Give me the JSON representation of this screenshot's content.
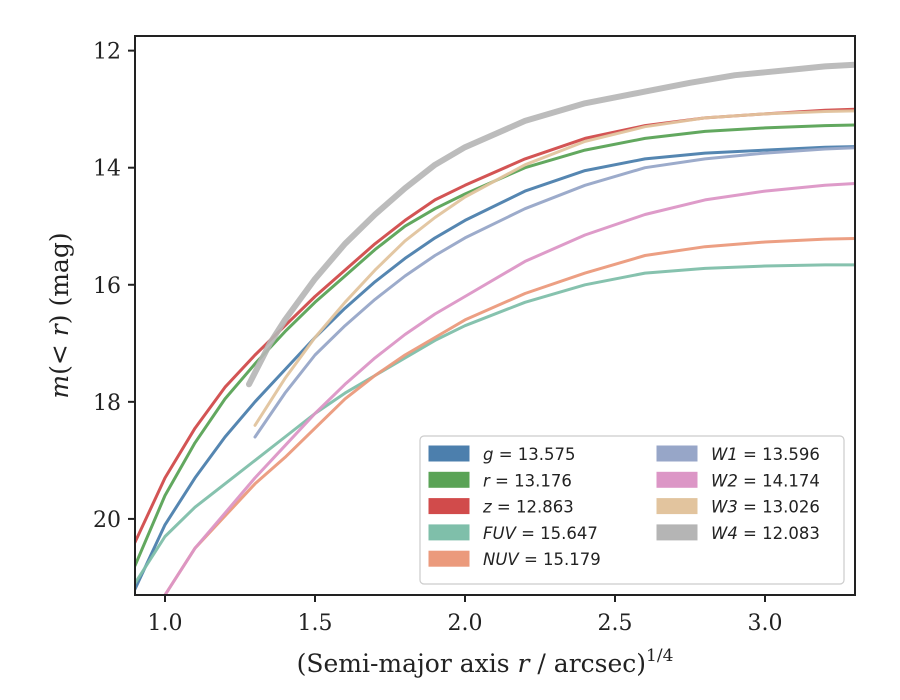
{
  "chart_data": {
    "type": "line",
    "xlabel_main": "(Semi-major axis ",
    "xlabel_var": "r",
    "xlabel_unit": " / arcsec)",
    "xlabel_exp": "1/4",
    "ylabel_var": "m",
    "ylabel_inner": "(< ",
    "ylabel_var2": "r",
    "ylabel_tail": ") (mag)",
    "xlim": [
      0.9,
      3.3
    ],
    "ylim": [
      21.3,
      11.75
    ],
    "y_inverted": true,
    "xticks": [
      1.0,
      1.5,
      2.0,
      2.5,
      3.0
    ],
    "xtick_labels": [
      "1.0",
      "1.5",
      "2.0",
      "2.5",
      "3.0"
    ],
    "yticks": [
      12,
      14,
      16,
      18,
      20
    ],
    "ytick_labels": [
      "12",
      "14",
      "16",
      "18",
      "20"
    ],
    "grid": false,
    "legend_position": "lower right",
    "series": [
      {
        "name": "g",
        "label_value": "= 13.575",
        "color": "#4c7fad",
        "x": [
          0.9,
          1.0,
          1.1,
          1.2,
          1.3,
          1.4,
          1.5,
          1.6,
          1.7,
          1.8,
          1.9,
          2.0,
          2.2,
          2.4,
          2.6,
          2.8,
          3.0,
          3.2,
          3.3
        ],
        "y": [
          21.2,
          20.1,
          19.3,
          18.6,
          18.0,
          17.45,
          16.9,
          16.4,
          15.95,
          15.55,
          15.2,
          14.9,
          14.4,
          14.05,
          13.85,
          13.75,
          13.7,
          13.65,
          13.64
        ]
      },
      {
        "name": "r",
        "label_value": "= 13.176",
        "color": "#5aa356",
        "x": [
          0.9,
          1.0,
          1.1,
          1.2,
          1.3,
          1.4,
          1.5,
          1.6,
          1.7,
          1.8,
          1.9,
          2.0,
          2.2,
          2.4,
          2.6,
          2.8,
          3.0,
          3.2,
          3.3
        ],
        "y": [
          20.8,
          19.6,
          18.7,
          17.95,
          17.35,
          16.8,
          16.3,
          15.85,
          15.4,
          15.0,
          14.7,
          14.45,
          14.0,
          13.7,
          13.5,
          13.38,
          13.32,
          13.28,
          13.27
        ]
      },
      {
        "name": "z",
        "label_value": "= 12.863",
        "color": "#d14b4b",
        "x": [
          0.9,
          1.0,
          1.1,
          1.2,
          1.3,
          1.4,
          1.5,
          1.6,
          1.7,
          1.8,
          1.9,
          2.0,
          2.2,
          2.4,
          2.6,
          2.8,
          3.0,
          3.2,
          3.3
        ],
        "y": [
          20.4,
          19.3,
          18.45,
          17.75,
          17.2,
          16.7,
          16.2,
          15.75,
          15.3,
          14.9,
          14.55,
          14.3,
          13.85,
          13.5,
          13.28,
          13.15,
          13.08,
          13.02,
          13.0
        ]
      },
      {
        "name": "FUV",
        "label_value": "= 15.647",
        "color": "#7fbfaa",
        "x": [
          0.9,
          1.0,
          1.1,
          1.2,
          1.3,
          1.4,
          1.5,
          1.6,
          1.7,
          1.8,
          1.9,
          2.0,
          2.2,
          2.4,
          2.6,
          2.8,
          3.0,
          3.2,
          3.3
        ],
        "y": [
          21.1,
          20.3,
          19.8,
          19.4,
          19.0,
          18.6,
          18.2,
          17.85,
          17.55,
          17.25,
          16.95,
          16.7,
          16.3,
          16.0,
          15.8,
          15.72,
          15.68,
          15.66,
          15.66
        ]
      },
      {
        "name": "NUV",
        "label_value": "= 15.179",
        "color": "#eb9a7c",
        "x": [
          1.0,
          1.1,
          1.2,
          1.3,
          1.4,
          1.5,
          1.6,
          1.7,
          1.8,
          1.9,
          2.0,
          2.2,
          2.4,
          2.6,
          2.8,
          3.0,
          3.2,
          3.3
        ],
        "y": [
          21.3,
          20.5,
          19.95,
          19.4,
          18.95,
          18.45,
          17.95,
          17.55,
          17.2,
          16.9,
          16.6,
          16.15,
          15.8,
          15.5,
          15.35,
          15.27,
          15.22,
          15.21
        ]
      },
      {
        "name": "W1",
        "label_value": "= 13.596",
        "color": "#97a6c8",
        "x": [
          1.3,
          1.4,
          1.5,
          1.6,
          1.7,
          1.8,
          1.9,
          2.0,
          2.2,
          2.4,
          2.6,
          2.8,
          3.0,
          3.2,
          3.3
        ],
        "y": [
          18.6,
          17.85,
          17.2,
          16.7,
          16.25,
          15.85,
          15.5,
          15.2,
          14.7,
          14.3,
          14.0,
          13.85,
          13.75,
          13.68,
          13.66
        ]
      },
      {
        "name": "W2",
        "label_value": "= 14.174",
        "color": "#dc96c6",
        "x": [
          1.0,
          1.1,
          1.2,
          1.3,
          1.4,
          1.5,
          1.6,
          1.7,
          1.8,
          1.9,
          2.0,
          2.2,
          2.4,
          2.6,
          2.8,
          3.0,
          3.2,
          3.3
        ],
        "y": [
          21.3,
          20.5,
          19.9,
          19.3,
          18.75,
          18.2,
          17.7,
          17.25,
          16.85,
          16.5,
          16.2,
          15.6,
          15.15,
          14.8,
          14.55,
          14.4,
          14.3,
          14.27
        ]
      },
      {
        "name": "W3",
        "label_value": "= 13.026",
        "color": "#e2c49e",
        "x": [
          1.3,
          1.4,
          1.5,
          1.6,
          1.7,
          1.8,
          1.9,
          2.0,
          2.2,
          2.4,
          2.6,
          2.8,
          3.0,
          3.2,
          3.3
        ],
        "y": [
          18.4,
          17.6,
          16.9,
          16.3,
          15.75,
          15.25,
          14.85,
          14.5,
          13.95,
          13.55,
          13.3,
          13.15,
          13.08,
          13.04,
          13.03
        ]
      },
      {
        "name": "W4",
        "label_value": "= 12.083",
        "color": "#b5b5b5",
        "x": [
          1.28,
          1.35,
          1.4,
          1.5,
          1.6,
          1.7,
          1.8,
          1.9,
          2.0,
          2.2,
          2.4,
          2.6,
          2.75,
          2.9,
          3.0,
          3.1,
          3.2,
          3.3
        ],
        "y": [
          17.7,
          17.0,
          16.6,
          15.9,
          15.3,
          14.8,
          14.35,
          13.95,
          13.65,
          13.2,
          12.9,
          12.7,
          12.55,
          12.42,
          12.37,
          12.32,
          12.27,
          12.24
        ]
      }
    ]
  }
}
